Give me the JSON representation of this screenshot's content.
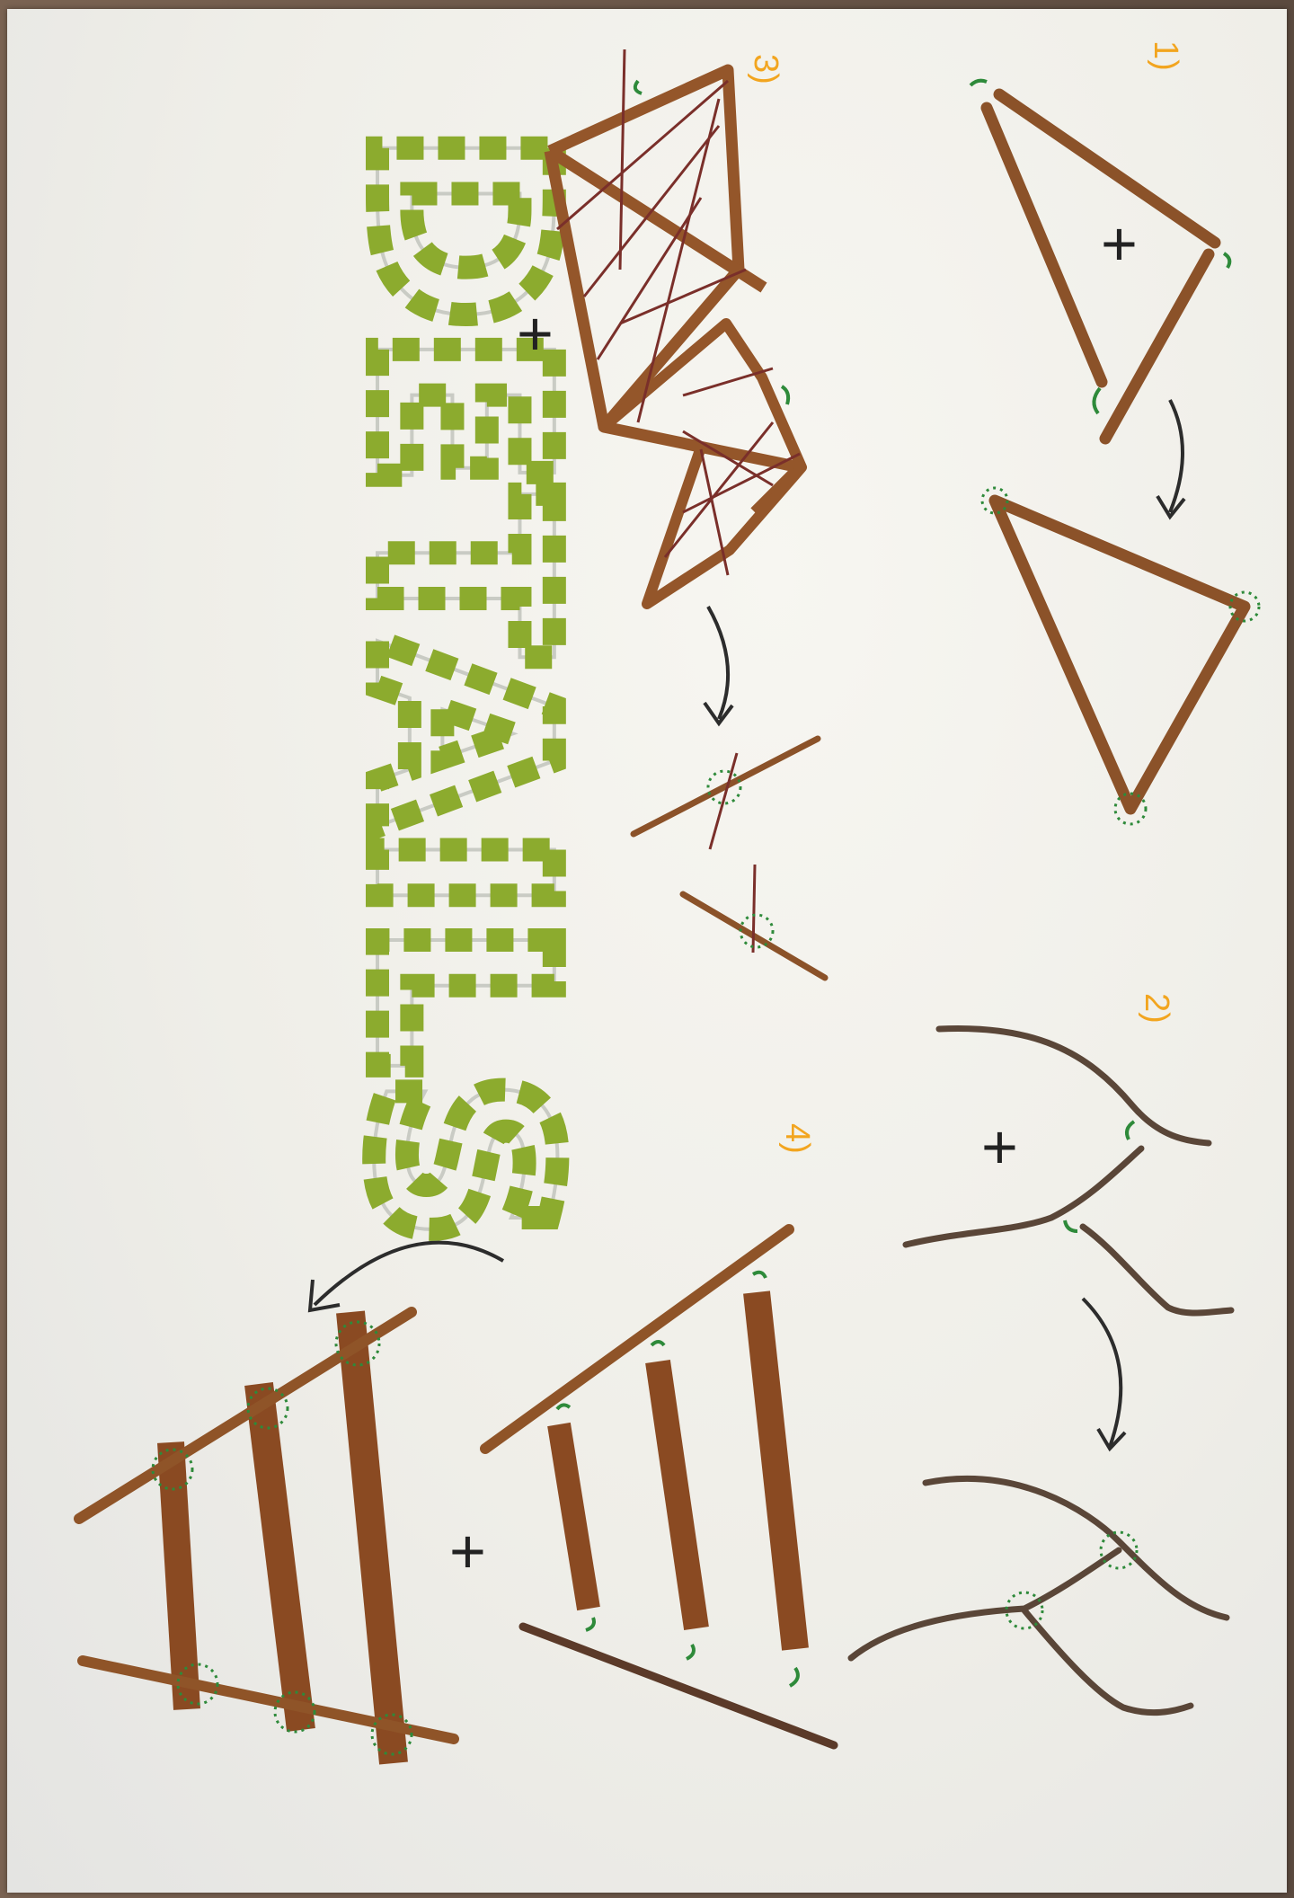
{
  "title": {
    "text": "DETAILS",
    "color": "#8cab2e"
  },
  "steps": [
    {
      "label": "1)"
    },
    {
      "label": "2)"
    },
    {
      "label": "3)"
    },
    {
      "label": "4)"
    }
  ],
  "plus_symbol": "+",
  "colors": {
    "stick": "#9a5a2c",
    "stick_dark": "#6b3d22",
    "branch": "#5a4638",
    "joint_marks": "#2e8a3a",
    "arrow": "#2c2c2c",
    "step_numbers": "#f2a51f",
    "paper": "#f3f2ed"
  }
}
